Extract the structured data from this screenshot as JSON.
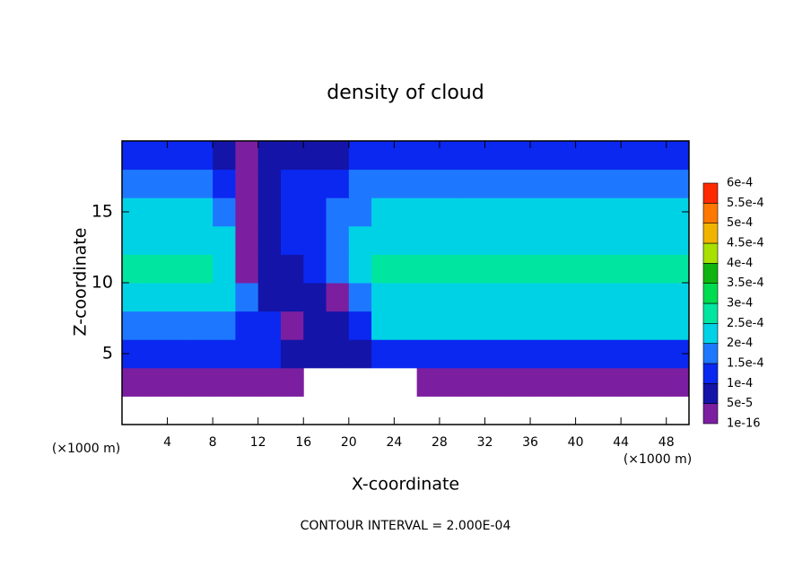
{
  "chart_data": {
    "type": "contour",
    "title": "density of cloud",
    "x_label": "X-coordinate",
    "y_label": "Z-coordinate",
    "x_unit_left": "(×1000 m)",
    "x_unit_right": "(×1000 m)",
    "footer": "CONTOUR INTERVAL = 2.000E-04",
    "xlim": [
      0,
      50
    ],
    "ylim": [
      0,
      20
    ],
    "xticks": [
      4,
      8,
      12,
      16,
      20,
      24,
      28,
      32,
      36,
      40,
      44,
      48
    ],
    "yticks": [
      5,
      10,
      15
    ],
    "x": [
      1,
      3,
      5,
      7,
      9,
      11,
      13,
      15,
      17,
      19,
      21,
      23,
      25,
      27,
      29,
      31,
      33,
      35,
      37,
      39,
      41,
      43,
      45,
      47,
      49
    ],
    "y": [
      1,
      3,
      5,
      7,
      9,
      11,
      13,
      15,
      17,
      19
    ],
    "values": [
      [
        null,
        null,
        null,
        null,
        null,
        null,
        null,
        null,
        null,
        null,
        null,
        null,
        null,
        null,
        null,
        null,
        null,
        null,
        null,
        null,
        null,
        null,
        null,
        null,
        null
      ],
      [
        2e-05,
        3e-05,
        3e-05,
        3e-05,
        2e-05,
        2e-05,
        2e-05,
        2e-05,
        null,
        null,
        null,
        null,
        null,
        2e-05,
        3e-05,
        3e-05,
        3e-05,
        3e-05,
        4e-05,
        3e-05,
        3e-05,
        3e-05,
        3e-05,
        3e-05,
        3e-05
      ],
      [
        0.0001,
        0.00011,
        0.00011,
        0.0001,
        0.0001,
        0.0001,
        0.0001,
        8e-05,
        8e-05,
        6e-05,
        6e-05,
        0.00012,
        0.00012,
        0.00012,
        0.00012,
        0.00012,
        0.00012,
        0.00012,
        0.00011,
        0.00012,
        0.00012,
        0.00012,
        0.00012,
        0.00012,
        0.00012
      ],
      [
        0.00018,
        0.00018,
        0.00018,
        0.00018,
        0.00018,
        0.00012,
        0.00012,
        3e-05,
        8e-05,
        8e-05,
        0.00012,
        0.0002,
        0.0002,
        0.0002,
        0.0002,
        0.0002,
        0.0002,
        0.0002,
        0.0002,
        0.0002,
        0.0002,
        0.0002,
        0.0002,
        0.0002,
        0.0002
      ],
      [
        0.00024,
        0.00024,
        0.00024,
        0.00024,
        0.00024,
        0.00016,
        6e-05,
        5e-05,
        5e-05,
        3e-05,
        0.00016,
        0.00024,
        0.00024,
        0.00024,
        0.00024,
        0.00024,
        0.00024,
        0.00024,
        0.00024,
        0.00024,
        0.00024,
        0.00024,
        0.00024,
        0.00024,
        0.00024
      ],
      [
        0.00025,
        0.00025,
        0.00025,
        0.00025,
        0.00022,
        3e-05,
        5e-05,
        8e-05,
        0.00012,
        0.00016,
        0.00021,
        0.00025,
        0.00025,
        0.00025,
        0.00025,
        0.00025,
        0.00025,
        0.00025,
        0.00025,
        0.00025,
        0.00025,
        0.00025,
        0.00025,
        0.00025,
        0.00025
      ],
      [
        0.00024,
        0.00024,
        0.00024,
        0.00024,
        0.00021,
        4e-05,
        6e-05,
        0.0001,
        0.00014,
        0.00016,
        0.0002,
        0.00024,
        0.00024,
        0.00024,
        0.00024,
        0.00024,
        0.00024,
        0.00024,
        0.00024,
        0.00024,
        0.00024,
        0.00024,
        0.00024,
        0.00024,
        0.00024
      ],
      [
        0.00021,
        0.00021,
        0.00021,
        0.00021,
        0.00018,
        3e-05,
        8e-05,
        0.00012,
        0.00012,
        0.00015,
        0.00018,
        0.00021,
        0.00021,
        0.00021,
        0.00021,
        0.00021,
        0.00021,
        0.00021,
        0.00021,
        0.00021,
        0.00021,
        0.00021,
        0.00021,
        0.00021,
        0.00021
      ],
      [
        0.00017,
        0.00017,
        0.00017,
        0.00017,
        0.00012,
        3e-05,
        6e-05,
        0.0001,
        0.0001,
        0.0001,
        0.00017,
        0.00017,
        0.00017,
        0.00017,
        0.00017,
        0.00017,
        0.00017,
        0.00017,
        0.00017,
        0.00017,
        0.00017,
        0.00017,
        0.00017,
        0.00017,
        0.00017
      ],
      [
        0.0001,
        0.0001,
        0.0001,
        0.0001,
        6e-05,
        3e-05,
        5e-05,
        7e-05,
        7e-05,
        7e-05,
        0.00011,
        0.00011,
        0.00011,
        0.00011,
        0.00011,
        0.00011,
        0.00011,
        0.00011,
        0.00011,
        0.00011,
        0.00011,
        0.00011,
        0.00011,
        0.00011,
        0.00011
      ]
    ],
    "levels": [
      {
        "value": 1e-16,
        "label": "1e-16"
      },
      {
        "value": 5e-05,
        "label": "5e-5"
      },
      {
        "value": 0.0001,
        "label": "1e-4"
      },
      {
        "value": 0.00015,
        "label": "1.5e-4"
      },
      {
        "value": 0.0002,
        "label": "2e-4"
      },
      {
        "value": 0.00025,
        "label": "2.5e-4"
      },
      {
        "value": 0.0003,
        "label": "3e-4"
      },
      {
        "value": 0.00035,
        "label": "3.5e-4"
      },
      {
        "value": 0.0004,
        "label": "4e-4"
      },
      {
        "value": 0.00045,
        "label": "4.5e-4"
      },
      {
        "value": 0.0005,
        "label": "5e-4"
      },
      {
        "value": 0.00055,
        "label": "5.5e-4"
      },
      {
        "value": 0.0006,
        "label": "6e-4"
      }
    ],
    "colors": [
      "#7b1fa0",
      "#1414a8",
      "#0a28f0",
      "#1e78ff",
      "#00d2e6",
      "#00e6a0",
      "#00dc50",
      "#10b410",
      "#a8e000",
      "#f0b400",
      "#ff7800",
      "#ff2a00"
    ]
  }
}
